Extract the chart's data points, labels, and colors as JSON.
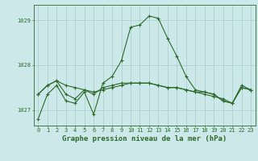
{
  "title": "Graphe pression niveau de la mer (hPa)",
  "bg_color": "#cce8e8",
  "grid_color": "#a8cccc",
  "line_color": "#2d6a2d",
  "x_labels": [
    "0",
    "1",
    "2",
    "3",
    "4",
    "5",
    "6",
    "7",
    "8",
    "9",
    "10",
    "11",
    "12",
    "13",
    "14",
    "15",
    "16",
    "17",
    "18",
    "19",
    "20",
    "21",
    "22",
    "23"
  ],
  "series1": [
    1026.8,
    1027.35,
    1027.55,
    1027.2,
    1027.15,
    1027.4,
    1026.9,
    1027.6,
    1027.75,
    1028.1,
    1028.85,
    1028.9,
    1029.1,
    1029.05,
    1028.6,
    1028.2,
    1027.75,
    1027.45,
    1027.4,
    1027.35,
    1027.2,
    1027.15,
    1027.55,
    1027.45
  ],
  "series2": [
    1027.35,
    1027.55,
    1027.65,
    1027.35,
    1027.25,
    1027.45,
    1027.35,
    1027.5,
    1027.55,
    1027.6,
    1027.6,
    1027.6,
    1027.6,
    1027.55,
    1027.5,
    1027.5,
    1027.45,
    1027.4,
    1027.4,
    1027.35,
    1027.2,
    1027.15,
    1027.5,
    1027.45
  ],
  "series3": [
    1027.35,
    1027.55,
    1027.65,
    1027.55,
    1027.5,
    1027.45,
    1027.4,
    1027.45,
    1027.5,
    1027.55,
    1027.6,
    1027.6,
    1027.6,
    1027.55,
    1027.5,
    1027.5,
    1027.45,
    1027.4,
    1027.35,
    1027.3,
    1027.25,
    1027.15,
    1027.5,
    1027.45
  ],
  "ylim_min": 1026.65,
  "ylim_max": 1029.35,
  "yticks": [
    1027,
    1028,
    1029
  ],
  "title_fontsize": 6.5,
  "tick_fontsize": 5.0
}
